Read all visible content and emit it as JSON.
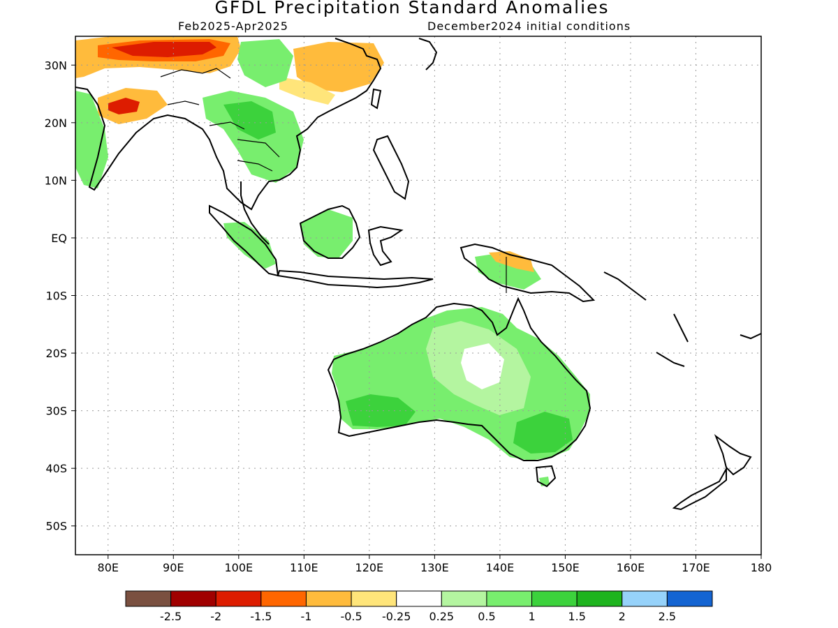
{
  "title": "GFDL Precipitation Standard Anomalies",
  "subtitle_left": "Feb2025-Apr2025",
  "subtitle_right": "December2024 initial conditions",
  "map": {
    "lon_range": [
      75,
      180
    ],
    "lat_range": [
      -55,
      35
    ],
    "lat_ticks": [
      {
        "lat": 30,
        "label": "30N"
      },
      {
        "lat": 20,
        "label": "20N"
      },
      {
        "lat": 10,
        "label": "10N"
      },
      {
        "lat": 0,
        "label": "EQ"
      },
      {
        "lat": -10,
        "label": "10S"
      },
      {
        "lat": -20,
        "label": "20S"
      },
      {
        "lat": -30,
        "label": "30S"
      },
      {
        "lat": -40,
        "label": "40S"
      },
      {
        "lat": -50,
        "label": "50S"
      }
    ],
    "lon_ticks": [
      {
        "lon": 80,
        "label": "80E"
      },
      {
        "lon": 90,
        "label": "90E"
      },
      {
        "lon": 100,
        "label": "100E"
      },
      {
        "lon": 110,
        "label": "110E"
      },
      {
        "lon": 120,
        "label": "120E"
      },
      {
        "lon": 130,
        "label": "130E"
      },
      {
        "lon": 140,
        "label": "140E"
      },
      {
        "lon": 150,
        "label": "150E"
      },
      {
        "lon": 160,
        "label": "160E"
      },
      {
        "lon": 170,
        "label": "170E"
      },
      {
        "lon": 180,
        "label": "180"
      }
    ],
    "gridlines": "dotted"
  },
  "legend": {
    "colors": [
      "#7a5040",
      "#a00000",
      "#dd1c00",
      "#ff6600",
      "#ffbb3c",
      "#ffe57a",
      "#ffffff",
      "#b4f5a0",
      "#78ee6e",
      "#3cd23c",
      "#1eb41e",
      "#96d2fa",
      "#1464d2"
    ],
    "labels": [
      "-2.5",
      "-2",
      "-1.5",
      "-1",
      "-0.5",
      "-0.25",
      "0.25",
      "0.5",
      "1",
      "1.5",
      "2",
      "2.5"
    ]
  }
}
